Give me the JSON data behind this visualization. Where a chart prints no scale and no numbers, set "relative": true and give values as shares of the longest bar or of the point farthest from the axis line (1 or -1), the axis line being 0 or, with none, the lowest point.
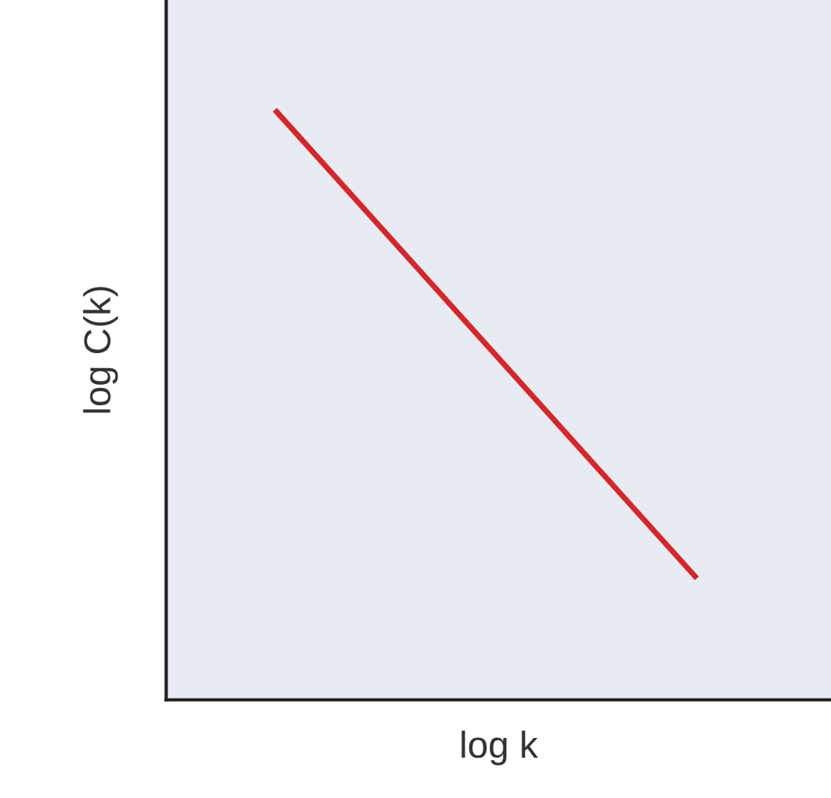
{
  "chart_data": {
    "type": "line",
    "relative": true,
    "xlabel": "log k",
    "ylabel": "log C(k)",
    "categories": [
      null,
      null
    ],
    "series": [
      {
        "color": "#d7262b",
        "values": [
          1,
          0.21
        ]
      }
    ],
    "tick_labels": false,
    "grid": false,
    "legend": false,
    "marker": "none",
    "line_style": "solid"
  }
}
